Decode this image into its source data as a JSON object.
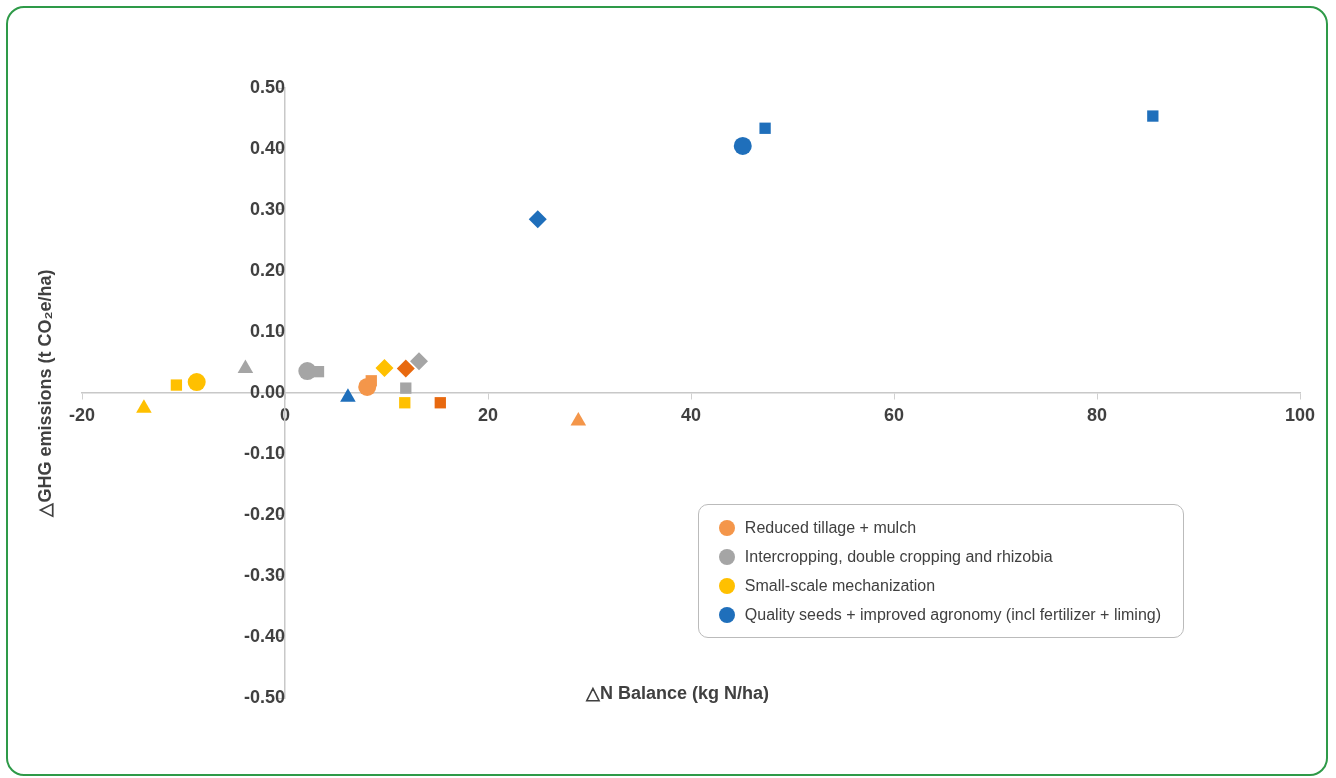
{
  "chart_data": {
    "type": "scatter",
    "xlabel": "△N Balance (kg N/ha)",
    "ylabel": "△GHG emissions (t CO₂e/ha)",
    "xlim": [
      -20,
      100
    ],
    "xticks": [
      -20,
      0,
      20,
      40,
      60,
      80,
      100
    ],
    "ylim": [
      -0.5,
      0.5
    ],
    "yticks": [
      {
        "value": -0.5,
        "label": "-0.50"
      },
      {
        "value": -0.4,
        "label": "-0.40"
      },
      {
        "value": -0.3,
        "label": "-0.30"
      },
      {
        "value": -0.2,
        "label": "-0.20"
      },
      {
        "value": -0.1,
        "label": "-0.10"
      },
      {
        "value": 0,
        "label": "0.00"
      },
      {
        "value": 0.1,
        "label": "0.10"
      },
      {
        "value": 0.2,
        "label": "0.20"
      },
      {
        "value": 0.3,
        "label": "0.30"
      },
      {
        "value": 0.4,
        "label": "0.40"
      },
      {
        "value": 0.5,
        "label": "0.50"
      }
    ],
    "legend": "bottom right",
    "series": [
      {
        "name": "Reduced tillage + mulch",
        "color": "#f4964a",
        "marker": "circle",
        "x": [
          8.1
        ],
        "values": [
          0.01
        ]
      },
      {
        "name": "Intercropping, double cropping and rhizobia",
        "color": "#a5a5a5",
        "marker": "circle",
        "x": [
          2.2
        ],
        "values": [
          0.036
        ]
      },
      {
        "name": "Small-scale mechanization",
        "color": "#ffc000",
        "marker": "circle",
        "x": [
          -8.7
        ],
        "values": [
          0.018
        ]
      },
      {
        "name": "Quality seeds + improved agronomy (incl fertilizer + liming)",
        "color": "#1f6fbb",
        "marker": "circle",
        "x": [
          45.1
        ],
        "values": [
          0.405
        ]
      },
      {
        "color": "#f4964a",
        "marker": "square",
        "x": [
          8.5
        ],
        "values": [
          0.02
        ]
      },
      {
        "color": "#f4964a",
        "marker": "triangle",
        "x": [
          28.9
        ],
        "values": [
          -0.046
        ]
      },
      {
        "color": "#e8690f",
        "marker": "diamond",
        "x": [
          11.9
        ],
        "values": [
          0.04
        ]
      },
      {
        "color": "#e8690f",
        "marker": "square",
        "x": [
          15.3
        ],
        "values": [
          -0.016
        ]
      },
      {
        "color": "#a5a5a5",
        "marker": "square",
        "x": [
          3.3,
          11.9
        ],
        "values": [
          0.035,
          0.008
        ]
      },
      {
        "color": "#a5a5a5",
        "marker": "triangle",
        "x": [
          -3.9
        ],
        "values": [
          0.04
        ]
      },
      {
        "color": "#a5a5a5",
        "marker": "diamond",
        "x": [
          13.2
        ],
        "values": [
          0.052
        ]
      },
      {
        "color": "#ffc000",
        "marker": "square",
        "x": [
          -10.7,
          11.8
        ],
        "values": [
          0.013,
          -0.016
        ]
      },
      {
        "color": "#ffc000",
        "marker": "triangle",
        "x": [
          -13.9
        ],
        "values": [
          -0.025
        ]
      },
      {
        "color": "#ffc000",
        "marker": "diamond",
        "x": [
          9.8
        ],
        "values": [
          0.041
        ]
      },
      {
        "color": "#1f6fbb",
        "marker": "triangle",
        "x": [
          6.2
        ],
        "values": [
          -0.007
        ]
      },
      {
        "color": "#1f6fbb",
        "marker": "diamond",
        "x": [
          24.9
        ],
        "values": [
          0.285
        ]
      },
      {
        "color": "#1f6fbb",
        "marker": "square",
        "x": [
          47.3,
          85.5
        ],
        "values": [
          0.434,
          0.454
        ]
      }
    ]
  }
}
